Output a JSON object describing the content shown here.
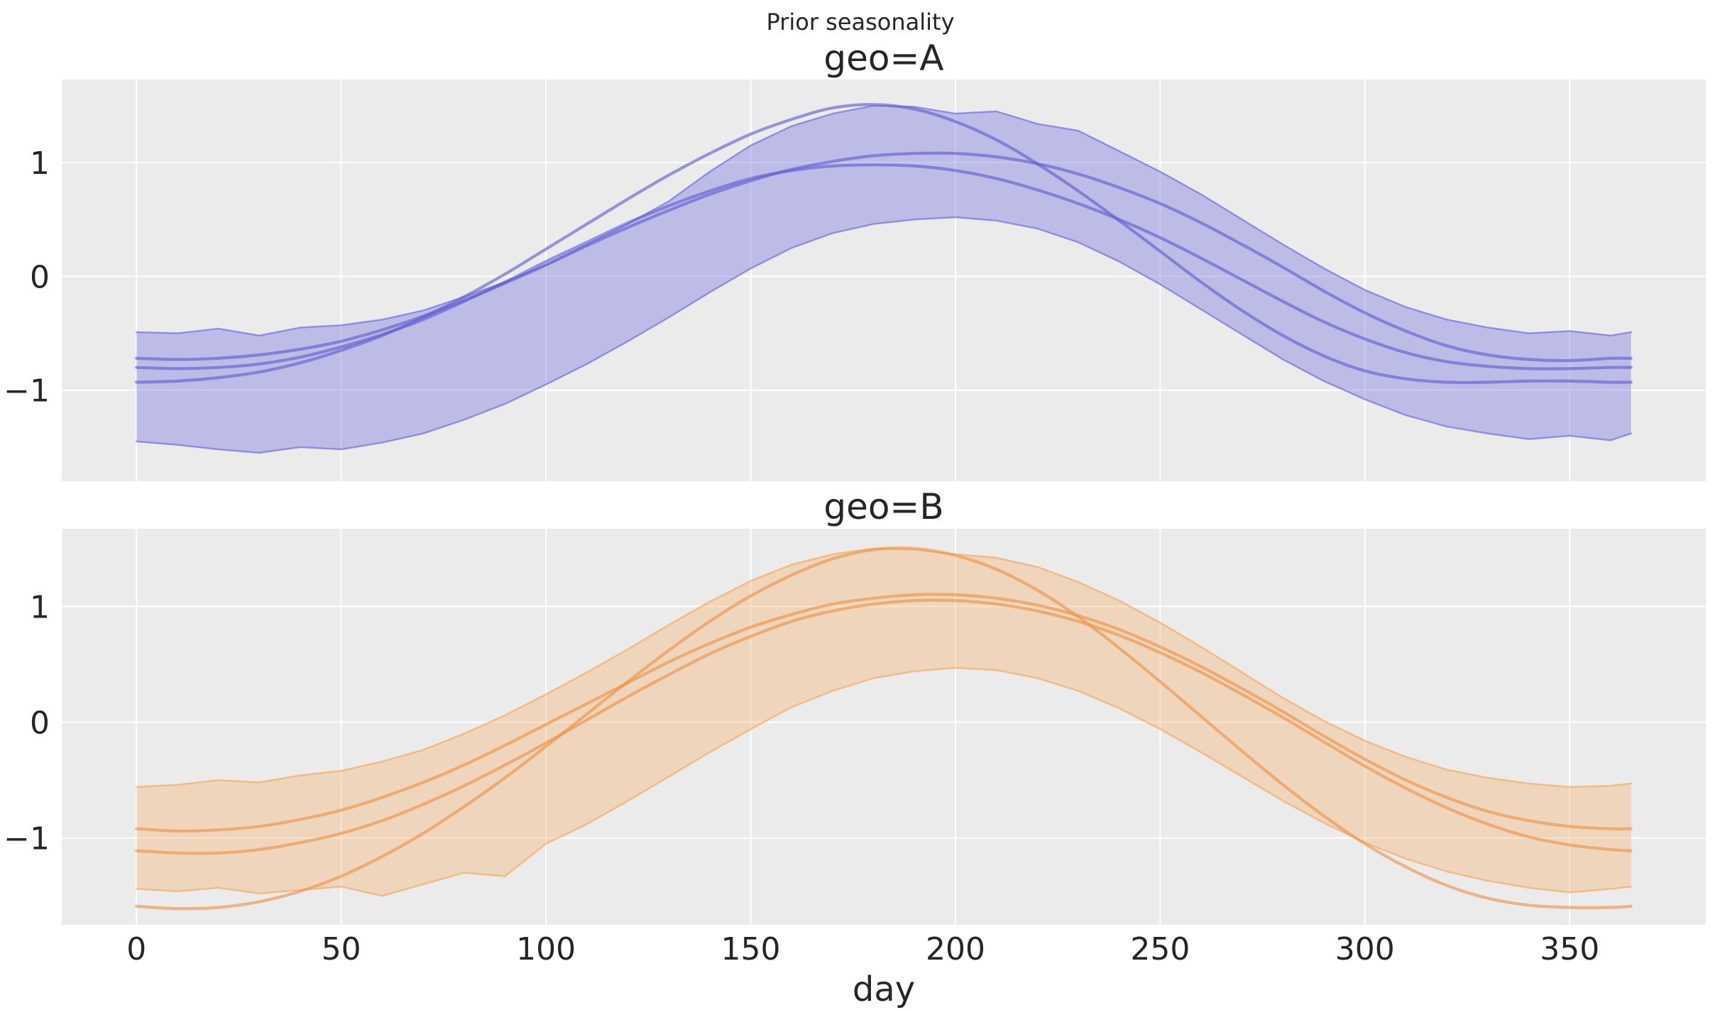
{
  "figure": {
    "suptitle": "Prior seasonality",
    "background_color": "#ffffff",
    "axes_background_color": "#ebebeb",
    "grid_color": "#ffffff",
    "text_color": "#262626"
  },
  "chart_data": {
    "type": "line",
    "title": "Prior seasonality",
    "xlabel": "day",
    "ylabel": "",
    "grid": true,
    "legend_position": "none",
    "description": "Two stacked subplots of prior seasonality curves: a shaded credible band with three sampled seasonality lines per geo, over days 0-365.",
    "xlim": [
      -18.25,
      383.25
    ],
    "xticks": [
      0,
      50,
      100,
      150,
      200,
      250,
      300,
      350
    ],
    "xticklabels": [
      "0",
      "50",
      "100",
      "150",
      "200",
      "250",
      "300",
      "350"
    ],
    "yticks": [
      1,
      0,
      -1
    ],
    "yticklabels": [
      "1",
      "0",
      "−1"
    ],
    "x_days": [
      0,
      10,
      20,
      30,
      40,
      50,
      60,
      70,
      80,
      90,
      100,
      110,
      120,
      130,
      140,
      150,
      160,
      170,
      180,
      190,
      200,
      210,
      220,
      230,
      240,
      250,
      260,
      270,
      280,
      290,
      300,
      310,
      320,
      330,
      340,
      350,
      360,
      365
    ],
    "subplots": [
      {
        "title": "geo=A",
        "band_color": "#7d7be2",
        "band_fill_opacity": 0.42,
        "band_edge_opacity": 0.8,
        "line_color": "#5f5cd0",
        "line_opacity": 0.62,
        "ylim": [
          -1.8,
          1.73
        ],
        "band_upper": [
          -0.49,
          -0.5,
          -0.46,
          -0.52,
          -0.45,
          -0.43,
          -0.38,
          -0.3,
          -0.18,
          -0.05,
          0.1,
          0.28,
          0.46,
          0.66,
          0.92,
          1.15,
          1.32,
          1.43,
          1.5,
          1.49,
          1.43,
          1.45,
          1.34,
          1.28,
          1.1,
          0.92,
          0.72,
          0.5,
          0.28,
          0.07,
          -0.12,
          -0.27,
          -0.38,
          -0.45,
          -0.5,
          -0.48,
          -0.52,
          -0.49
        ],
        "band_lower": [
          -1.45,
          -1.48,
          -1.52,
          -1.55,
          -1.5,
          -1.52,
          -1.46,
          -1.38,
          -1.26,
          -1.12,
          -0.95,
          -0.77,
          -0.57,
          -0.36,
          -0.14,
          0.07,
          0.25,
          0.38,
          0.46,
          0.5,
          0.52,
          0.49,
          0.42,
          0.3,
          0.13,
          -0.07,
          -0.29,
          -0.51,
          -0.73,
          -0.92,
          -1.08,
          -1.22,
          -1.32,
          -1.38,
          -1.43,
          -1.4,
          -1.44,
          -1.38
        ],
        "sample_lines": [
          [
            -0.93,
            -0.92,
            -0.89,
            -0.84,
            -0.76,
            -0.65,
            -0.52,
            -0.36,
            -0.18,
            0.02,
            0.24,
            0.46,
            0.68,
            0.89,
            1.08,
            1.25,
            1.38,
            1.48,
            1.51,
            1.47,
            1.36,
            1.2,
            0.99,
            0.75,
            0.49,
            0.22,
            -0.05,
            -0.3,
            -0.52,
            -0.7,
            -0.83,
            -0.9,
            -0.93,
            -0.93,
            -0.92,
            -0.92,
            -0.93,
            -0.93
          ],
          [
            -0.72,
            -0.73,
            -0.72,
            -0.69,
            -0.64,
            -0.57,
            -0.47,
            -0.35,
            -0.21,
            -0.06,
            0.1,
            0.27,
            0.43,
            0.58,
            0.72,
            0.84,
            0.94,
            1.01,
            1.06,
            1.08,
            1.08,
            1.05,
            0.99,
            0.9,
            0.78,
            0.64,
            0.47,
            0.28,
            0.08,
            -0.13,
            -0.32,
            -0.48,
            -0.61,
            -0.69,
            -0.73,
            -0.74,
            -0.72,
            -0.72
          ],
          [
            -0.8,
            -0.81,
            -0.8,
            -0.77,
            -0.71,
            -0.62,
            -0.51,
            -0.38,
            -0.22,
            -0.05,
            0.13,
            0.3,
            0.47,
            0.62,
            0.75,
            0.86,
            0.93,
            0.97,
            0.98,
            0.97,
            0.93,
            0.86,
            0.76,
            0.64,
            0.5,
            0.34,
            0.16,
            -0.03,
            -0.22,
            -0.4,
            -0.55,
            -0.67,
            -0.75,
            -0.79,
            -0.81,
            -0.81,
            -0.8,
            -0.8
          ]
        ]
      },
      {
        "title": "geo=B",
        "band_color": "#f5a962",
        "band_fill_opacity": 0.34,
        "band_edge_opacity": 0.7,
        "line_color": "#ec8f3f",
        "line_opacity": 0.6,
        "ylim": [
          -1.75,
          1.67
        ],
        "band_upper": [
          -0.56,
          -0.54,
          -0.5,
          -0.52,
          -0.46,
          -0.42,
          -0.34,
          -0.24,
          -0.1,
          0.06,
          0.24,
          0.43,
          0.63,
          0.84,
          1.04,
          1.22,
          1.36,
          1.45,
          1.5,
          1.49,
          1.45,
          1.42,
          1.34,
          1.21,
          1.05,
          0.86,
          0.65,
          0.43,
          0.21,
          0.01,
          -0.16,
          -0.3,
          -0.41,
          -0.48,
          -0.53,
          -0.56,
          -0.55,
          -0.53
        ],
        "band_lower": [
          -1.44,
          -1.46,
          -1.43,
          -1.48,
          -1.45,
          -1.42,
          -1.5,
          -1.4,
          -1.3,
          -1.33,
          -1.05,
          -0.88,
          -0.68,
          -0.47,
          -0.26,
          -0.06,
          0.13,
          0.27,
          0.38,
          0.44,
          0.47,
          0.45,
          0.38,
          0.27,
          0.12,
          -0.06,
          -0.26,
          -0.47,
          -0.68,
          -0.87,
          -1.04,
          -1.18,
          -1.29,
          -1.37,
          -1.43,
          -1.47,
          -1.44,
          -1.42
        ],
        "sample_lines": [
          [
            -1.59,
            -1.61,
            -1.6,
            -1.55,
            -1.46,
            -1.33,
            -1.16,
            -0.96,
            -0.73,
            -0.48,
            -0.21,
            0.07,
            0.35,
            0.62,
            0.87,
            1.09,
            1.27,
            1.41,
            1.49,
            1.5,
            1.44,
            1.32,
            1.14,
            0.91,
            0.64,
            0.35,
            0.05,
            -0.25,
            -0.54,
            -0.81,
            -1.05,
            -1.25,
            -1.41,
            -1.52,
            -1.58,
            -1.6,
            -1.6,
            -1.59
          ],
          [
            -0.92,
            -0.94,
            -0.93,
            -0.9,
            -0.84,
            -0.76,
            -0.65,
            -0.52,
            -0.37,
            -0.2,
            -0.02,
            0.16,
            0.34,
            0.52,
            0.68,
            0.82,
            0.93,
            1.02,
            1.07,
            1.1,
            1.1,
            1.07,
            1.01,
            0.92,
            0.8,
            0.65,
            0.48,
            0.29,
            0.09,
            -0.12,
            -0.32,
            -0.5,
            -0.65,
            -0.77,
            -0.85,
            -0.9,
            -0.92,
            -0.92
          ],
          [
            -1.11,
            -1.13,
            -1.13,
            -1.1,
            -1.04,
            -0.96,
            -0.85,
            -0.71,
            -0.55,
            -0.37,
            -0.18,
            0.02,
            0.22,
            0.41,
            0.59,
            0.74,
            0.87,
            0.96,
            1.02,
            1.05,
            1.05,
            1.02,
            0.96,
            0.87,
            0.75,
            0.6,
            0.43,
            0.24,
            0.04,
            -0.17,
            -0.38,
            -0.57,
            -0.74,
            -0.88,
            -0.99,
            -1.06,
            -1.1,
            -1.11
          ]
        ]
      }
    ]
  }
}
